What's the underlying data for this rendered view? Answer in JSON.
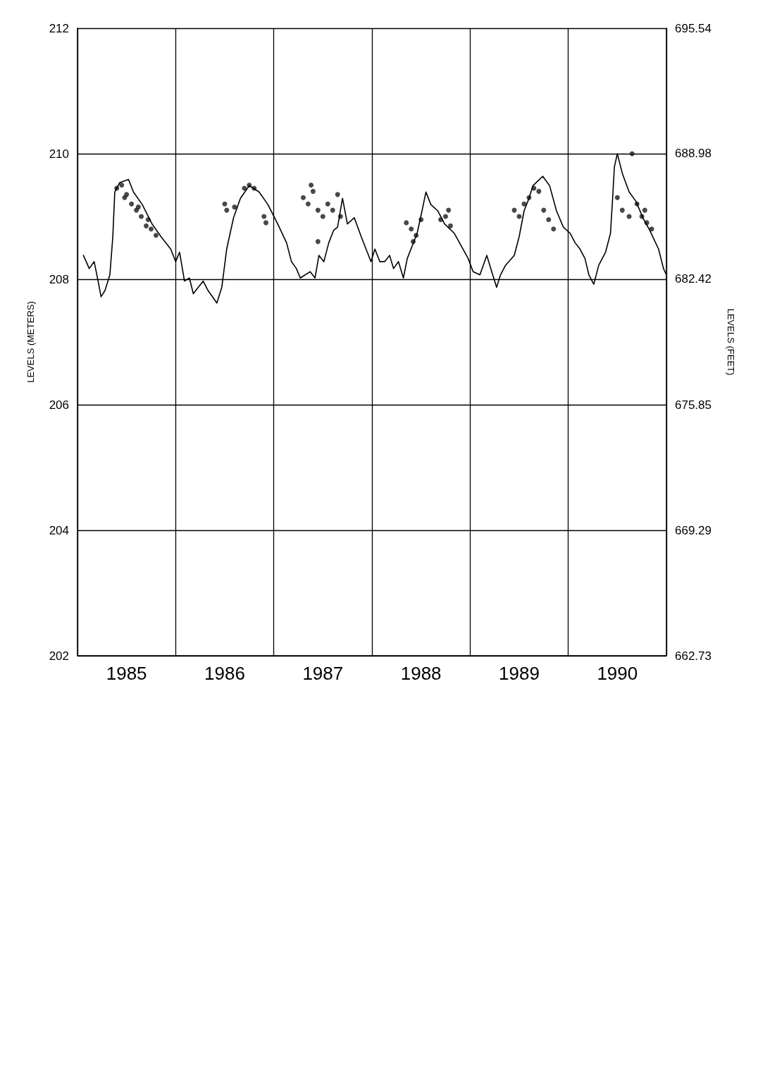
{
  "chart_data": {
    "type": "line",
    "xlabel": null,
    "ylabel": "LEVELS (METERS)",
    "y2label": "LEVELS (FEET)",
    "xlim": [
      1985,
      1991
    ],
    "xticks": [
      {
        "value": 1985,
        "label": null
      },
      {
        "value": 1985.5,
        "label": "1985"
      },
      {
        "value": 1986,
        "label": null
      },
      {
        "value": 1986.5,
        "label": "1986"
      },
      {
        "value": 1987,
        "label": null
      },
      {
        "value": 1987.5,
        "label": "1987"
      },
      {
        "value": 1988,
        "label": null
      },
      {
        "value": 1988.5,
        "label": "1988"
      },
      {
        "value": 1989,
        "label": null
      },
      {
        "value": 1989.5,
        "label": "1989"
      },
      {
        "value": 1990,
        "label": null
      },
      {
        "value": 1990.5,
        "label": "1990"
      },
      {
        "value": 1991,
        "label": null
      }
    ],
    "ylim": [
      202,
      212
    ],
    "yticks": [
      202,
      204,
      206,
      208,
      210,
      212
    ],
    "y2lim": [
      662.73,
      695.54
    ],
    "y2ticks": [
      662.73,
      669.29,
      675.85,
      682.42,
      688.98,
      695.54
    ],
    "grid": true,
    "series": [
      {
        "color": "#000000",
        "marker": "none",
        "line_style": "solid",
        "x": [
          1985.06,
          1985.12,
          1985.17,
          1985.21,
          1985.24,
          1985.28,
          1985.33,
          1985.36,
          1985.38,
          1985.43,
          1985.52,
          1985.57,
          1985.66,
          1985.76,
          1985.85,
          1985.95,
          1986.0,
          1986.04,
          1986.09,
          1986.14,
          1986.18,
          1986.23,
          1986.28,
          1986.33,
          1986.42,
          1986.47,
          1986.52,
          1986.59,
          1986.66,
          1986.75,
          1986.85,
          1986.94,
          1987.04,
          1987.13,
          1987.18,
          1987.23,
          1987.27,
          1987.37,
          1987.42,
          1987.46,
          1987.51,
          1987.56,
          1987.61,
          1987.65,
          1987.7,
          1987.75,
          1987.82,
          1987.89,
          1987.94,
          1987.99,
          1988.03,
          1988.08,
          1988.13,
          1988.18,
          1988.22,
          1988.27,
          1988.32,
          1988.36,
          1988.41,
          1988.46,
          1988.51,
          1988.55,
          1988.6,
          1988.67,
          1988.74,
          1988.84,
          1988.91,
          1988.98,
          1989.03,
          1989.1,
          1989.17,
          1989.22,
          1989.27,
          1989.31,
          1989.36,
          1989.45,
          1989.5,
          1989.55,
          1989.6,
          1989.64,
          1989.74,
          1989.81,
          1989.88,
          1989.95,
          1990.02,
          1990.07,
          1990.12,
          1990.17,
          1990.21,
          1990.26,
          1990.31,
          1990.38,
          1990.43,
          1990.45,
          1990.47,
          1990.5,
          1990.55,
          1990.62,
          1990.69,
          1990.76,
          1990.83,
          1990.92,
          1990.97,
          1991.0
        ],
        "values": [
          208.38,
          208.17,
          208.28,
          207.97,
          207.72,
          207.82,
          208.07,
          208.68,
          209.39,
          209.54,
          209.59,
          209.39,
          209.19,
          208.88,
          208.68,
          208.48,
          208.28,
          208.43,
          207.97,
          208.02,
          207.77,
          207.87,
          207.97,
          207.82,
          207.62,
          207.87,
          208.48,
          208.98,
          209.29,
          209.49,
          209.39,
          209.19,
          208.88,
          208.58,
          208.28,
          208.17,
          208.02,
          208.12,
          208.02,
          208.38,
          208.28,
          208.58,
          208.78,
          208.83,
          209.29,
          208.88,
          208.98,
          208.68,
          208.48,
          208.28,
          208.48,
          208.28,
          208.28,
          208.38,
          208.17,
          208.28,
          208.02,
          208.33,
          208.53,
          208.73,
          209.09,
          209.39,
          209.19,
          209.09,
          208.88,
          208.73,
          208.53,
          208.33,
          208.12,
          208.07,
          208.38,
          208.12,
          207.87,
          208.07,
          208.22,
          208.38,
          208.68,
          209.09,
          209.29,
          209.49,
          209.64,
          209.49,
          209.09,
          208.83,
          208.73,
          208.58,
          208.48,
          208.33,
          208.07,
          207.92,
          208.22,
          208.43,
          208.73,
          209.24,
          209.79,
          210.0,
          209.69,
          209.39,
          209.24,
          208.98,
          208.78,
          208.48,
          208.17,
          208.07
        ]
      },
      {
        "type": "scatter",
        "color": "#1a1a1a",
        "marker": "circle",
        "x": [
          1985.4,
          1985.45,
          1985.5,
          1985.55,
          1985.6,
          1985.65,
          1985.7,
          1985.75,
          1985.8,
          1985.48,
          1985.62,
          1985.72,
          1986.5,
          1986.52,
          1986.6,
          1986.7,
          1986.75,
          1986.8,
          1986.9,
          1986.92,
          1987.3,
          1987.35,
          1987.4,
          1987.45,
          1987.5,
          1987.55,
          1987.6,
          1987.65,
          1987.68,
          1987.45,
          1987.38,
          1988.35,
          1988.4,
          1988.45,
          1988.5,
          1988.42,
          1988.7,
          1988.75,
          1988.78,
          1988.8,
          1989.45,
          1989.5,
          1989.55,
          1989.6,
          1989.65,
          1989.7,
          1989.75,
          1989.8,
          1989.85,
          1990.5,
          1990.55,
          1990.62,
          1990.65,
          1990.7,
          1990.75,
          1990.8,
          1990.85,
          1990.78
        ],
        "values": [
          209.45,
          209.5,
          209.35,
          209.2,
          209.1,
          209.0,
          208.85,
          208.8,
          208.7,
          209.3,
          209.15,
          208.95,
          209.2,
          209.1,
          209.15,
          209.45,
          209.5,
          209.45,
          209.0,
          208.9,
          209.3,
          209.2,
          209.4,
          209.1,
          209.0,
          209.2,
          209.1,
          209.35,
          209.0,
          208.6,
          209.5,
          208.9,
          208.8,
          208.7,
          208.95,
          208.6,
          208.95,
          209.0,
          209.1,
          208.85,
          209.1,
          209.0,
          209.2,
          209.3,
          209.45,
          209.4,
          209.1,
          208.95,
          208.8,
          209.3,
          209.1,
          209.0,
          210.0,
          209.2,
          209.0,
          208.9,
          208.8,
          209.1
        ]
      }
    ]
  }
}
